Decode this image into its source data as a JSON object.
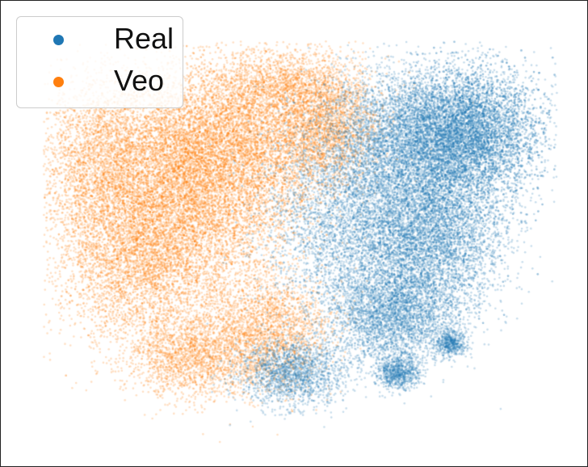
{
  "chart_data": {
    "type": "scatter",
    "title": "",
    "xlabel": "",
    "ylabel": "",
    "axes_visible": false,
    "grid": false,
    "legend_position": "top-left",
    "series": [
      {
        "name": "Real",
        "color": "#1f77b4",
        "point_alpha": 0.25,
        "clusters": [
          {
            "x": 0.82,
            "y": 0.24,
            "sx": 0.07,
            "sy": 0.08,
            "weight": 0.26
          },
          {
            "x": 0.75,
            "y": 0.48,
            "sx": 0.07,
            "sy": 0.1,
            "weight": 0.22
          },
          {
            "x": 0.68,
            "y": 0.68,
            "sx": 0.06,
            "sy": 0.06,
            "weight": 0.12
          },
          {
            "x": 0.7,
            "y": 0.25,
            "sx": 0.08,
            "sy": 0.08,
            "weight": 0.14
          },
          {
            "x": 0.69,
            "y": 0.82,
            "sx": 0.02,
            "sy": 0.02,
            "weight": 0.03
          },
          {
            "x": 0.79,
            "y": 0.75,
            "sx": 0.015,
            "sy": 0.015,
            "weight": 0.02
          },
          {
            "x": 0.49,
            "y": 0.82,
            "sx": 0.05,
            "sy": 0.04,
            "weight": 0.07
          },
          {
            "x": 0.6,
            "y": 0.45,
            "sx": 0.08,
            "sy": 0.12,
            "weight": 0.14
          }
        ]
      },
      {
        "name": "Veo",
        "color": "#ff7f0e",
        "point_alpha": 0.25,
        "clusters": [
          {
            "x": 0.28,
            "y": 0.4,
            "sx": 0.11,
            "sy": 0.12,
            "weight": 0.3
          },
          {
            "x": 0.36,
            "y": 0.25,
            "sx": 0.11,
            "sy": 0.09,
            "weight": 0.22
          },
          {
            "x": 0.2,
            "y": 0.56,
            "sx": 0.08,
            "sy": 0.1,
            "weight": 0.12
          },
          {
            "x": 0.44,
            "y": 0.72,
            "sx": 0.06,
            "sy": 0.07,
            "weight": 0.09
          },
          {
            "x": 0.3,
            "y": 0.78,
            "sx": 0.06,
            "sy": 0.05,
            "weight": 0.07
          },
          {
            "x": 0.55,
            "y": 0.22,
            "sx": 0.05,
            "sy": 0.07,
            "weight": 0.08
          },
          {
            "x": 0.12,
            "y": 0.3,
            "sx": 0.05,
            "sy": 0.1,
            "weight": 0.07
          },
          {
            "x": 0.47,
            "y": 0.12,
            "sx": 0.07,
            "sy": 0.04,
            "weight": 0.05
          }
        ]
      }
    ]
  },
  "legend": {
    "items": [
      {
        "label": "Real",
        "color": "#1f77b4"
      },
      {
        "label": "Veo",
        "color": "#ff7f0e"
      }
    ]
  }
}
